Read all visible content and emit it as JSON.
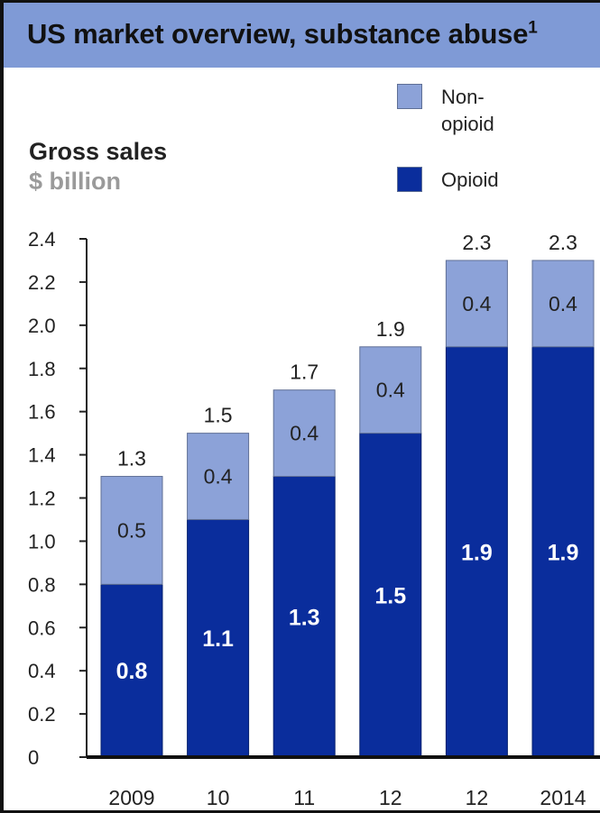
{
  "header": {
    "title": "US market overview, substance abuse",
    "footnote_mark": "1"
  },
  "axis": {
    "ylabel": "Gross sales",
    "yunit": "$ billion"
  },
  "legend": [
    {
      "label": "Non-\nopioid",
      "color": "#8ca2d8"
    },
    {
      "label": "Opioid",
      "color": "#0a2d9c"
    }
  ],
  "chart_data": {
    "type": "bar",
    "stacked": true,
    "title": "US market overview, substance abuse",
    "ylabel": "Gross sales $ billion",
    "categories": [
      "2009",
      "10",
      "11",
      "12",
      "12",
      "2014"
    ],
    "series": [
      {
        "name": "Opioid",
        "color": "#0a2d9c",
        "values": [
          0.8,
          1.1,
          1.3,
          1.5,
          1.9,
          1.9
        ],
        "labels": [
          "0.8",
          "1.1",
          "1.3",
          "1.5",
          "1.9",
          "1.9"
        ]
      },
      {
        "name": "Non-opioid",
        "color": "#8ca2d8",
        "values": [
          0.5,
          0.4,
          0.4,
          0.4,
          0.4,
          0.4
        ],
        "labels": [
          "0.5",
          "0.4",
          "0.4",
          "0.4",
          "0.4",
          "0.4"
        ]
      }
    ],
    "totals": [
      "1.3",
      "1.5",
      "1.7",
      "1.9",
      "2.3",
      "2.3"
    ],
    "yticks": [
      "0",
      "0.2",
      "0.4",
      "0.6",
      "0.8",
      "1.0",
      "1.2",
      "1.4",
      "1.6",
      "1.8",
      "2.0",
      "2.2",
      "2.4"
    ],
    "ylim": [
      0,
      2.4
    ],
    "grid": false,
    "legend_position": "top-right"
  }
}
